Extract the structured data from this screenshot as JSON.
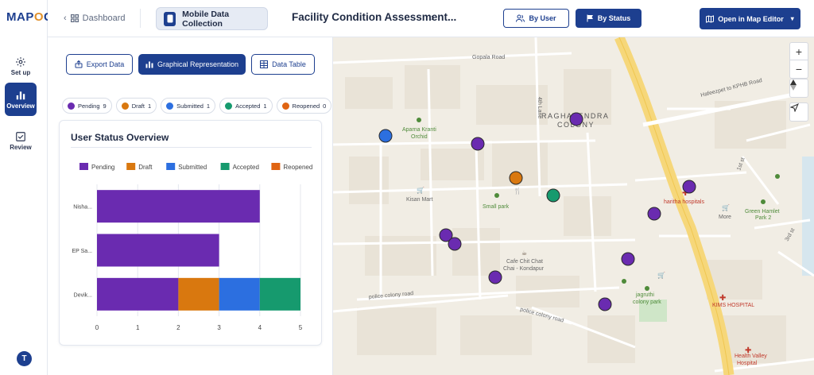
{
  "app": {
    "logo_prefix": "MAP",
    "logo_accent": "O",
    "logo_suffix": "G"
  },
  "rail": {
    "items": [
      {
        "label": "Set up",
        "icon": "gear-icon",
        "active": false
      },
      {
        "label": "Overview",
        "icon": "bar-chart-icon",
        "active": true
      },
      {
        "label": "Review",
        "icon": "checkbox-icon",
        "active": false
      }
    ],
    "avatar_initial": "T"
  },
  "topbar": {
    "back_label": "Dashboard",
    "module_label": "Mobile Data Collection",
    "project_title": "Facility Condition Assessment...",
    "by_user_label": "By User",
    "by_status_label": "By Status",
    "open_editor_label": "Open in Map Editor"
  },
  "panel": {
    "tabs": [
      {
        "label": "Export Data",
        "icon": "export-icon",
        "active": false
      },
      {
        "label": "Graphical Representation",
        "icon": "bar-chart-icon",
        "active": true
      },
      {
        "label": "Data Table",
        "icon": "table-icon",
        "active": false
      }
    ],
    "status_chips": [
      {
        "label": "Pending",
        "count": "9",
        "color": "#6a2bb0"
      },
      {
        "label": "Draft",
        "count": "1",
        "color": "#d9780f"
      },
      {
        "label": "Submitted",
        "count": "1",
        "color": "#2c6fe0"
      },
      {
        "label": "Accepted",
        "count": "1",
        "color": "#169a6e"
      },
      {
        "label": "Reopened",
        "count": "0",
        "color": "#e06412"
      }
    ],
    "card_title": "User Status Overview"
  },
  "chart_data": {
    "type": "bar",
    "orientation": "horizontal",
    "stacked": true,
    "categories": [
      "Nisha...",
      "EP Sa...",
      "Devik..."
    ],
    "series": [
      {
        "name": "Pending",
        "color": "#6a2bb0",
        "values": [
          4,
          3,
          2
        ]
      },
      {
        "name": "Draft",
        "color": "#d9780f",
        "values": [
          0,
          0,
          1
        ]
      },
      {
        "name": "Submitted",
        "color": "#2c6fe0",
        "values": [
          0,
          0,
          1
        ]
      },
      {
        "name": "Accepted",
        "color": "#169a6e",
        "values": [
          0,
          0,
          1
        ]
      },
      {
        "name": "Reopened",
        "color": "#e06412",
        "values": [
          0,
          0,
          0
        ]
      }
    ],
    "xlim": [
      0,
      5
    ],
    "xticks": [
      "0",
      "1",
      "2",
      "3",
      "4",
      "5"
    ],
    "grid": true,
    "legend_position": "top"
  },
  "map": {
    "labels": [
      "Gopala Road",
      "4th Lane",
      "RAGHAVENDRA",
      "COLONY",
      "Aparna Kranti",
      "Orchid",
      "Hafeezpet to KPHB Road",
      "Kisan Mart",
      "Small park",
      "haritha hospitals",
      "More",
      "Green Hamlet",
      "Park 2",
      "Cafe Chit Chat",
      "Chai - Kondapur",
      "police colony road",
      "police colony road",
      "jagruthi",
      "colony park",
      "KIMS HOSPITAL",
      "Health Valley",
      "Hospital",
      "1st st",
      "3rd st"
    ],
    "controls": [
      "zoom-in",
      "zoom-out",
      "compass",
      "locate"
    ],
    "zoom_in_label": "+",
    "zoom_out_label": "−",
    "markers": [
      {
        "status": "Submitted",
        "color": "#2c6fe0"
      },
      {
        "status": "Pending",
        "color": "#6a2bb0"
      },
      {
        "status": "Pending",
        "color": "#6a2bb0"
      },
      {
        "status": "Draft",
        "color": "#d9780f"
      },
      {
        "status": "Accepted",
        "color": "#169a6e"
      },
      {
        "status": "Pending",
        "color": "#6a2bb0"
      },
      {
        "status": "Pending",
        "color": "#6a2bb0"
      },
      {
        "status": "Pending",
        "color": "#6a2bb0"
      },
      {
        "status": "Pending",
        "color": "#6a2bb0"
      },
      {
        "status": "Pending",
        "color": "#6a2bb0"
      },
      {
        "status": "Pending",
        "color": "#6a2bb0"
      },
      {
        "status": "Pending",
        "color": "#6a2bb0"
      }
    ]
  }
}
